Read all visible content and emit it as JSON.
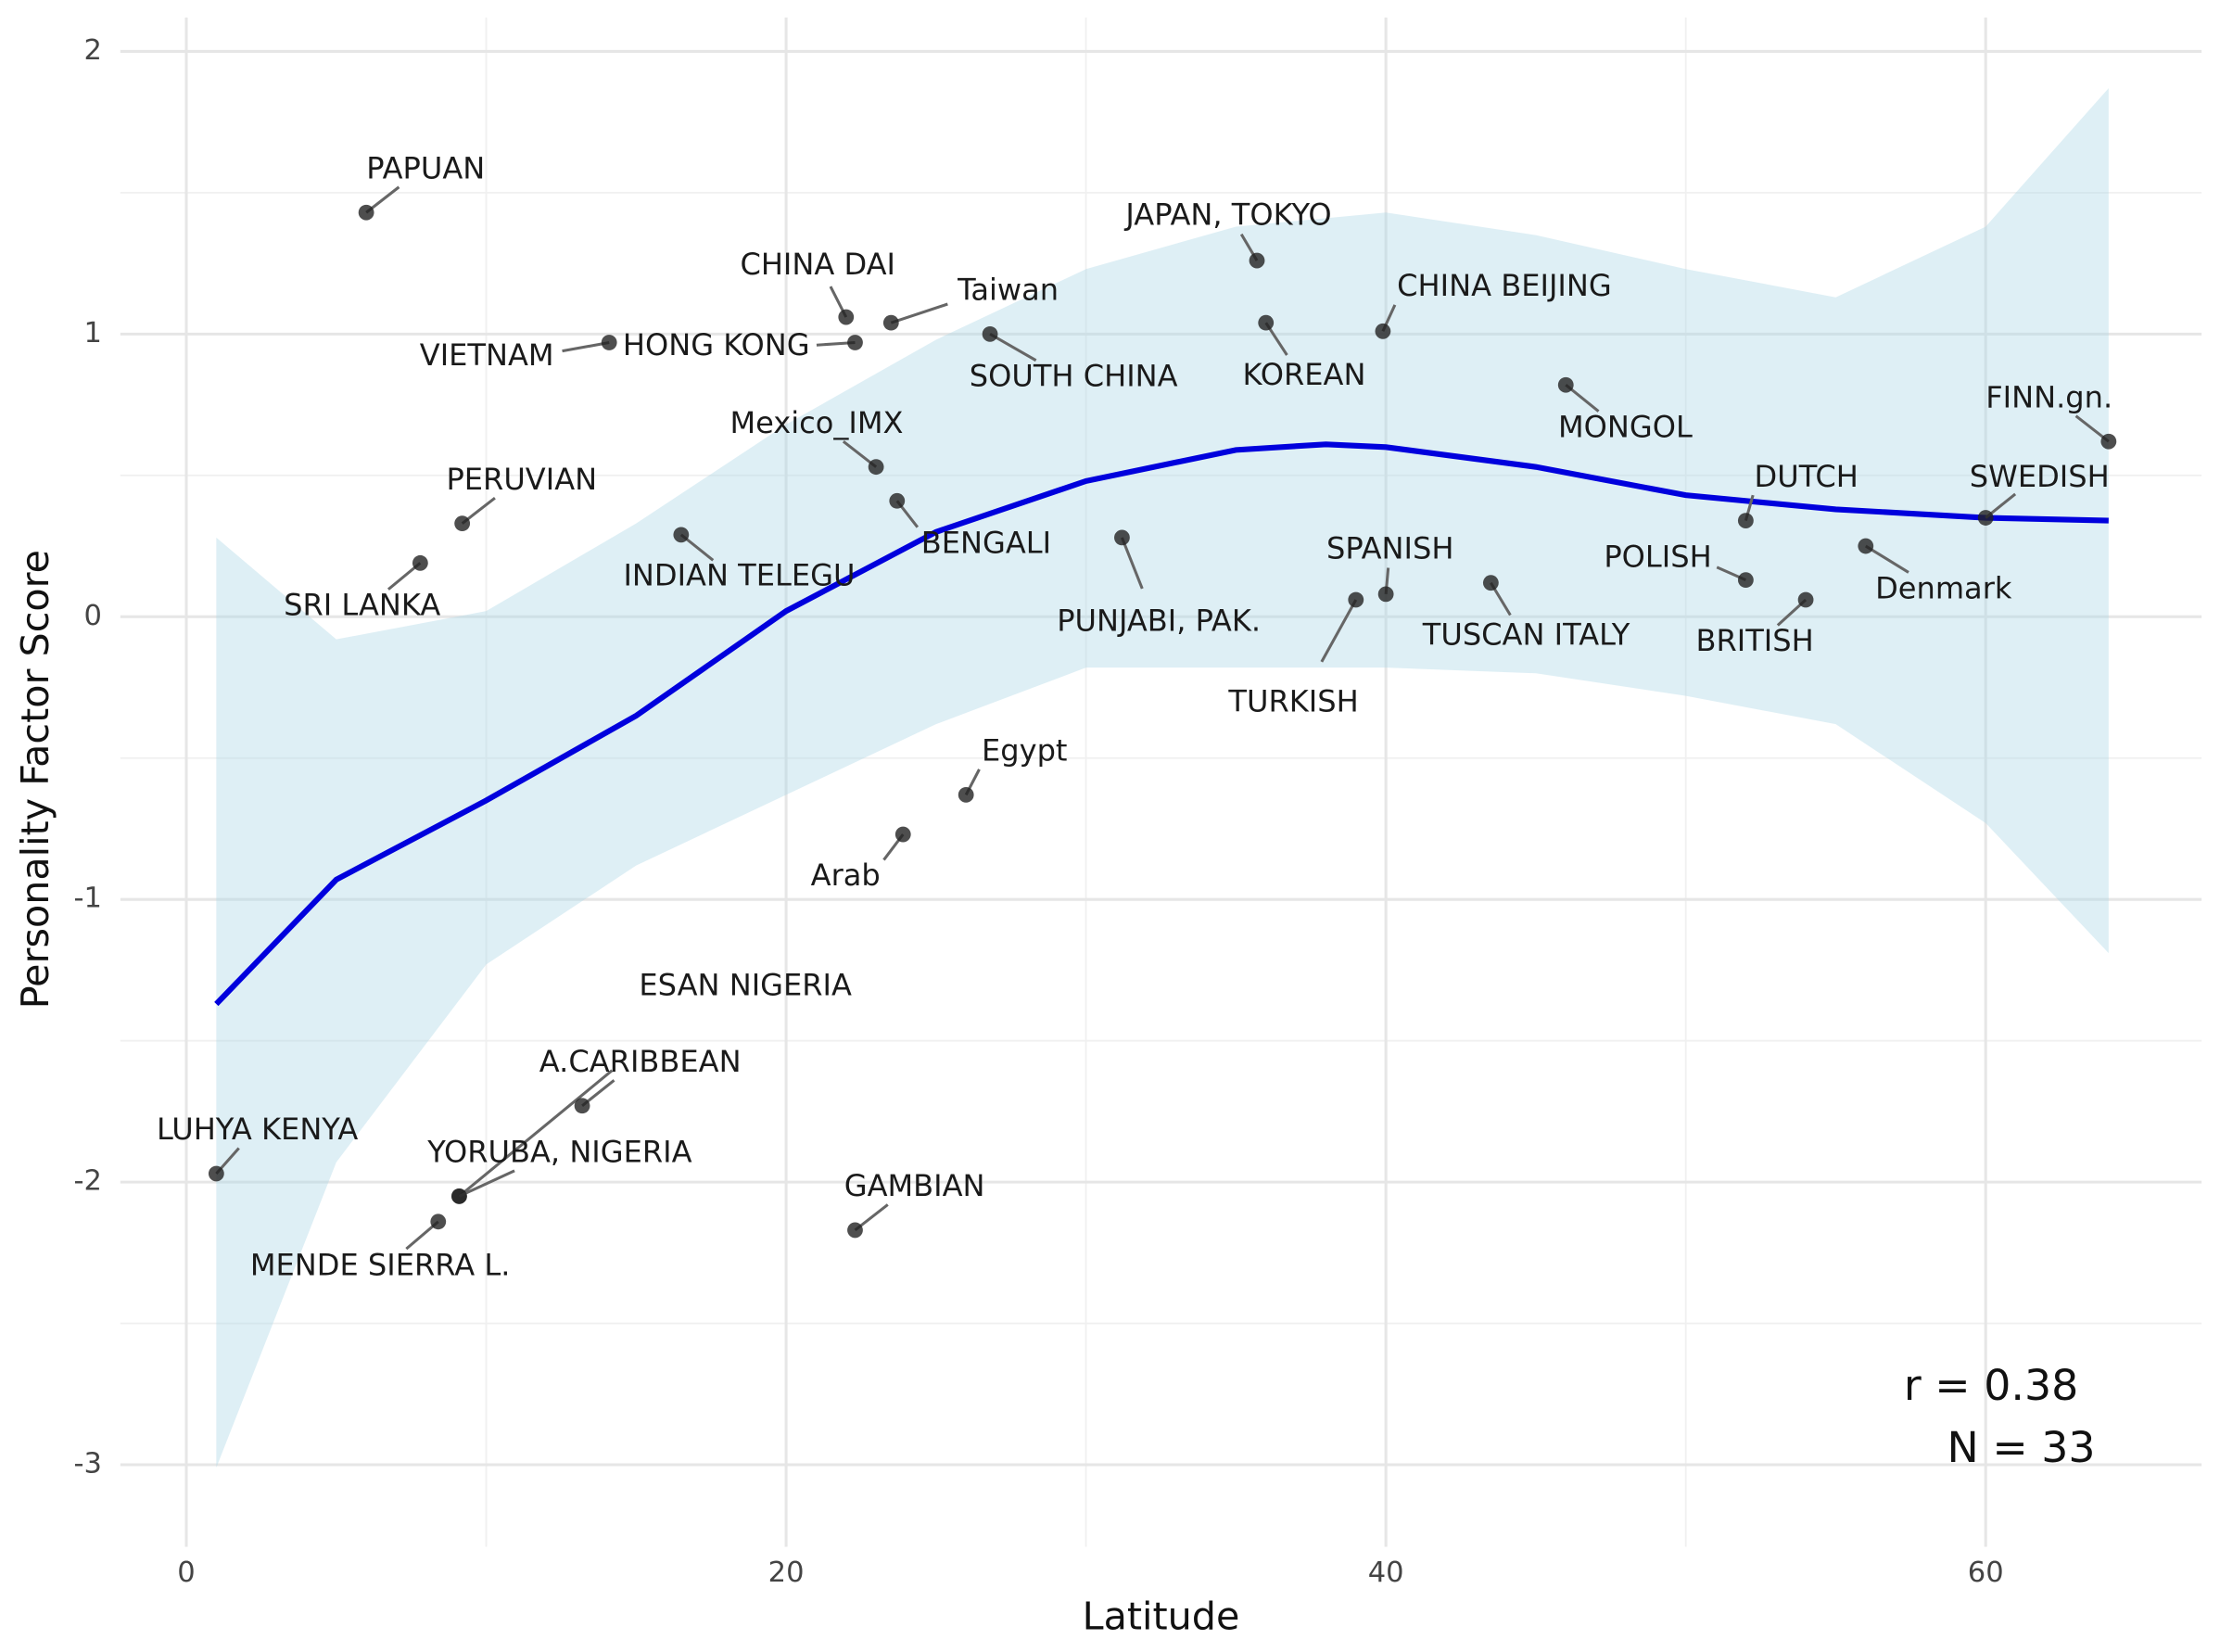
{
  "chart_data": {
    "type": "scatter",
    "x_label": "Latitude",
    "y_label": "Personality Factor Score",
    "xlim": [
      -2.2,
      67.2
    ],
    "ylim": [
      -3.29,
      2.12
    ],
    "xticks": [
      0,
      20,
      40,
      60
    ],
    "yticks": [
      -3,
      -2,
      -1,
      0,
      1,
      2
    ],
    "grid": true,
    "annotations": [
      "r = 0.38",
      "N = 33"
    ],
    "points": {
      "color": "#222222",
      "labels": [
        "PAPUAN",
        "CHINA DAI",
        "Taiwan",
        "VIETNAM",
        "HONG KONG",
        "SOUTH CHINA",
        "JAPAN, TOKYO",
        "KOREAN",
        "CHINA BEIJING",
        "MONGOL",
        "FINN.gn.",
        "SWEDISH",
        "DUTCH",
        "Denmark",
        "POLISH",
        "BRITISH",
        "TUSCAN ITALY",
        "SPANISH",
        "TURKISH",
        "PUNJABI, PAK.",
        "BENGALI",
        "Mexico_IMX",
        "INDIAN TELEGU",
        "PERUVIAN",
        "SRI LANKA",
        "Egypt",
        "Arab",
        "ESAN NIGERIA",
        "YORUBA, NIGERIA",
        "A.CARIBBEAN",
        "LUHYA KENYA",
        "MENDE SIERRA L.",
        "GAMBIAN"
      ],
      "x": [
        6.0,
        22.0,
        23.5,
        14.1,
        22.3,
        26.8,
        35.7,
        36.0,
        39.9,
        46.0,
        64.1,
        60.0,
        52.0,
        56.0,
        52.0,
        54.0,
        43.5,
        40.0,
        39.0,
        31.2,
        23.7,
        23.0,
        16.5,
        9.2,
        7.8,
        26.0,
        23.9,
        9.1,
        9.1,
        13.2,
        1.0,
        8.4,
        22.3
      ],
      "y": [
        1.43,
        1.06,
        1.04,
        0.97,
        0.97,
        1.0,
        1.26,
        1.04,
        1.01,
        0.82,
        0.62,
        0.35,
        0.34,
        0.25,
        0.13,
        0.06,
        0.12,
        0.08,
        0.06,
        0.28,
        0.41,
        0.53,
        0.29,
        0.33,
        0.19,
        -0.63,
        -0.77,
        -2.05,
        -2.05,
        -1.73,
        -1.97,
        -2.14,
        -2.17
      ]
    },
    "smooth": {
      "color": "#0000dd",
      "band_color": "#add8e6",
      "x": [
        1,
        5,
        10,
        15,
        20,
        25,
        30,
        35,
        38,
        40,
        45,
        50,
        55,
        60,
        64.1
      ],
      "y": [
        -1.37,
        -0.93,
        -0.65,
        -0.35,
        0.02,
        0.3,
        0.48,
        0.59,
        0.61,
        0.6,
        0.53,
        0.43,
        0.38,
        0.35,
        0.34
      ],
      "upper": [
        0.28,
        -0.08,
        0.02,
        0.33,
        0.68,
        0.98,
        1.23,
        1.38,
        1.41,
        1.43,
        1.35,
        1.23,
        1.13,
        1.38,
        1.87
      ],
      "lower": [
        -3.01,
        -1.93,
        -1.23,
        -0.88,
        -0.63,
        -0.38,
        -0.18,
        -0.18,
        -0.18,
        -0.18,
        -0.2,
        -0.28,
        -0.38,
        -0.73,
        -1.19
      ]
    }
  }
}
